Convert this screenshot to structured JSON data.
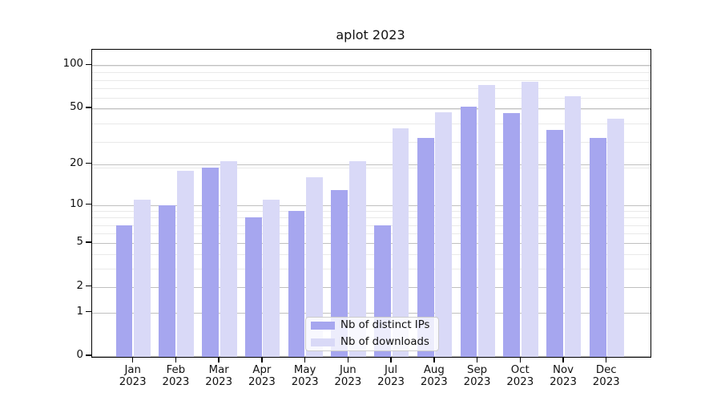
{
  "title": "aplot 2023",
  "chart_data": {
    "type": "bar",
    "title": "aplot 2023",
    "categories": [
      "Jan",
      "Feb",
      "Mar",
      "Apr",
      "May",
      "Jun",
      "Jul",
      "Aug",
      "Sep",
      "Oct",
      "Nov",
      "Dec"
    ],
    "year_label": "2023",
    "series": [
      {
        "name": "Nb of distinct IPs",
        "color": "#a6a6ef",
        "values": [
          7,
          10,
          19,
          8,
          9,
          13,
          7,
          31,
          51,
          46,
          35,
          31
        ]
      },
      {
        "name": "Nb of downloads",
        "color": "#d9d9f7",
        "values": [
          11,
          18,
          21,
          11,
          16,
          21,
          36,
          47,
          73,
          77,
          61,
          42
        ]
      }
    ],
    "yscale": "log10(1+v)",
    "yticks": [
      100,
      50,
      20,
      10,
      5,
      2,
      1,
      0
    ],
    "ylim": [
      0,
      126
    ],
    "xlabel": "",
    "ylabel": "",
    "grid": {
      "major_color": "#c0c0c0",
      "minor_color": "#e9e9e9"
    },
    "legend_position": "lower center"
  }
}
